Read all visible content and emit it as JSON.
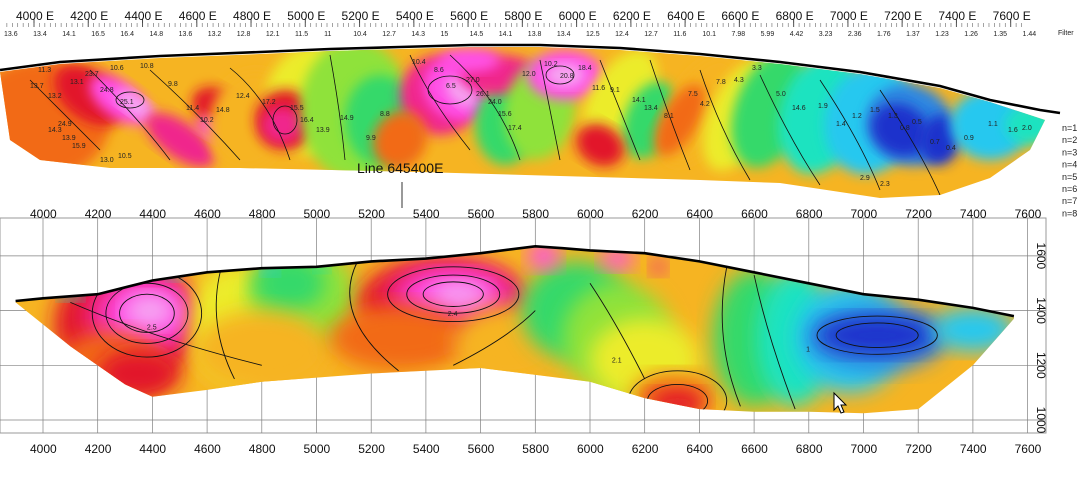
{
  "colors": {
    "scale": [
      "#1a33cc",
      "#2e86e0",
      "#27c8ef",
      "#1ee3c0",
      "#34d96a",
      "#8fe23a",
      "#ecec2c",
      "#f6b422",
      "#f26a17",
      "#e2182a",
      "#f0268c",
      "#ff4fe6",
      "#f6a6f2"
    ],
    "contour": "#111111",
    "topography": "#000000",
    "grid": "#808080"
  },
  "chart_data": [
    {
      "type": "heatmap",
      "name": "pseudosection",
      "x_ticks": [
        "4000 E",
        "4200 E",
        "4400 E",
        "4600 E",
        "4800 E",
        "5000 E",
        "5200 E",
        "5400 E",
        "5600 E",
        "5800 E",
        "6000 E",
        "6200 E",
        "6400 E",
        "6600 E",
        "6800 E",
        "7000 E",
        "7200 E",
        "7400 E",
        "7600 E"
      ],
      "x_values": [
        4000,
        4200,
        4400,
        4600,
        4800,
        5000,
        5200,
        5400,
        5600,
        5800,
        6000,
        6200,
        6400,
        6600,
        6800,
        7000,
        7200,
        7400,
        7600
      ],
      "filter_label": "Filter",
      "filter_values": [
        "13.6",
        "13.4",
        "14.1",
        "16.5",
        "16.4",
        "14.8",
        "13.6",
        "13.2",
        "12.8",
        "12.1",
        "11.5",
        "11",
        "10.4",
        "12.7",
        "14.3",
        "15",
        "14.5",
        "14.1",
        "13.8",
        "13.4",
        "12.5",
        "12.4",
        "12.7",
        "11.6",
        "10.1",
        "7.98",
        "5.99",
        "4.42",
        "3.23",
        "2.36",
        "1.76",
        "1.37",
        "1.23",
        "1.26",
        "1.35",
        "1.44"
      ],
      "n_labels": [
        "n=1",
        "n=2",
        "n=3",
        "n=4",
        "n=5",
        "n=6",
        "n=7",
        "n=8"
      ],
      "cell_values": [
        "11.3",
        "13.7",
        "13.2",
        "13.1",
        "10.6",
        "23.7",
        "24.8",
        "25.1",
        "24.9",
        "14.3",
        "13.9",
        "15.9",
        "13.0",
        "10.5",
        "10.8",
        "9.8",
        "11.4",
        "10.2",
        "14.8",
        "12.4",
        "17.2",
        "15.5",
        "16.4",
        "13.9",
        "14.9",
        "9.9",
        "8.8",
        "10.4",
        "8.6",
        "6.5",
        "27.0",
        "26.1",
        "24.0",
        "15.6",
        "17.4",
        "12.0",
        "10.2",
        "20.8",
        "18.4",
        "11.6",
        "9.1",
        "14.1",
        "13.4",
        "8.1",
        "7.5",
        "4.2",
        "7.8",
        "4.3",
        "3.3",
        "5.0",
        "14.6",
        "1.9",
        "1.4",
        "1.2",
        "1.5",
        "1.3",
        "0.8",
        "0.5",
        "0.7",
        "0.4",
        "0.9",
        "1.1",
        "1.6",
        "2.0",
        "2.5",
        "2.9",
        "2.3"
      ],
      "colorscale": "resistivity"
    },
    {
      "type": "heatmap",
      "name": "inversion-section",
      "title": "Line 645400E",
      "x_ticks": [
        "4000",
        "4200",
        "4400",
        "4600",
        "4800",
        "5000",
        "5200",
        "5400",
        "5600",
        "5800",
        "6000",
        "6200",
        "6400",
        "6600",
        "6800",
        "7000",
        "7200",
        "7400",
        "7600"
      ],
      "x_values": [
        4000,
        4200,
        4400,
        4600,
        4800,
        5000,
        5200,
        5400,
        5600,
        5800,
        6000,
        6200,
        6400,
        6600,
        6800,
        7000,
        7200,
        7400,
        7600
      ],
      "y_ticks": [
        "1600",
        "1400",
        "1200",
        "1000"
      ],
      "y_values": [
        1600,
        1400,
        1200,
        1000
      ],
      "xlim": [
        3900,
        7660
      ],
      "ylim": [
        960,
        1690
      ],
      "topography": [
        [
          3900,
          1435
        ],
        [
          4000,
          1445
        ],
        [
          4200,
          1460
        ],
        [
          4400,
          1510
        ],
        [
          4600,
          1540
        ],
        [
          4800,
          1555
        ],
        [
          5000,
          1560
        ],
        [
          5200,
          1580
        ],
        [
          5400,
          1590
        ],
        [
          5600,
          1610
        ],
        [
          5800,
          1635
        ],
        [
          5900,
          1628
        ],
        [
          6000,
          1620
        ],
        [
          6200,
          1610
        ],
        [
          6400,
          1580
        ],
        [
          6600,
          1540
        ],
        [
          6800,
          1500
        ],
        [
          7000,
          1460
        ],
        [
          7200,
          1440
        ],
        [
          7400,
          1410
        ],
        [
          7550,
          1380
        ]
      ],
      "base": [
        [
          3900,
          1430
        ],
        [
          4100,
          1270
        ],
        [
          4300,
          1130
        ],
        [
          4400,
          1085
        ],
        [
          4600,
          1110
        ],
        [
          4800,
          1140
        ],
        [
          5200,
          1170
        ],
        [
          5600,
          1190
        ],
        [
          6000,
          1140
        ],
        [
          6200,
          1080
        ],
        [
          6400,
          1040
        ],
        [
          6600,
          1030
        ],
        [
          6800,
          1030
        ],
        [
          7000,
          1025
        ],
        [
          7200,
          1040
        ],
        [
          7400,
          1200
        ],
        [
          7550,
          1370
        ]
      ],
      "annotations": [
        "2.5",
        "2.4",
        "2.1",
        "1"
      ]
    }
  ]
}
